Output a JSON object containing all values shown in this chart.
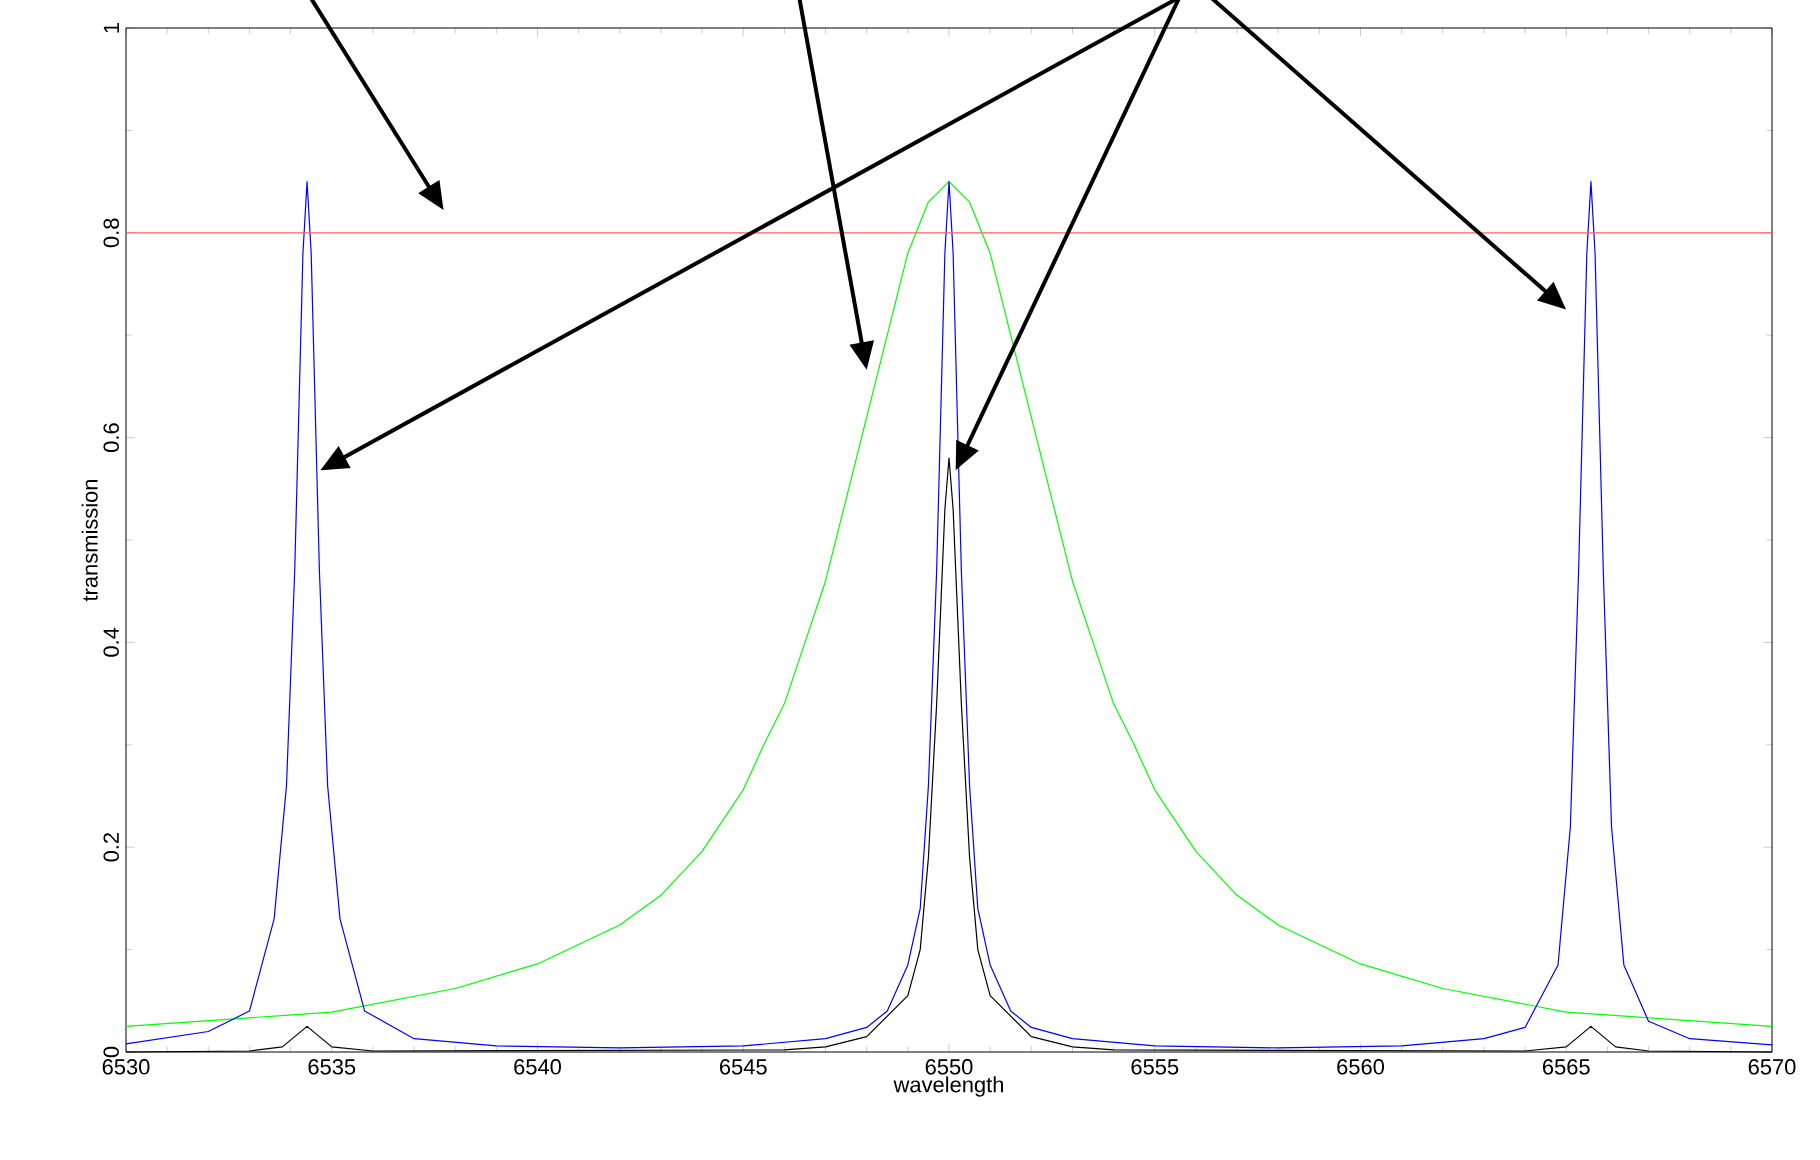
{
  "chart_data": {
    "type": "line",
    "xlabel": "wavelength",
    "ylabel": "transmission",
    "xlim": [
      6530,
      6570
    ],
    "ylim": [
      0,
      1
    ],
    "xticks": [
      6530,
      6535,
      6540,
      6545,
      6550,
      6555,
      6560,
      6565,
      6570
    ],
    "yticks": [
      0,
      0.2,
      0.4,
      0.6,
      0.8,
      1
    ],
    "marker": "none",
    "line_style": "solid",
    "ref_lines": [
      {
        "axis": "y",
        "value": 0.8,
        "color": "#ff6060"
      }
    ],
    "series": [
      {
        "color": "#00ff00",
        "x": [
          6530,
          6535,
          6538,
          6540,
          6542,
          6543,
          6544,
          6545,
          6545.5,
          6546,
          6546.5,
          6547,
          6547.5,
          6548,
          6548.5,
          6549,
          6549.5,
          6550,
          6550.5,
          6551,
          6551.5,
          6552,
          6552.5,
          6553,
          6553.5,
          6554,
          6554.5,
          6555,
          6556,
          6557,
          6558,
          6560,
          6562,
          6565,
          6570
        ],
        "values": [
          0.025,
          0.039,
          0.062,
          0.086,
          0.124,
          0.153,
          0.196,
          0.256,
          0.3,
          0.34,
          0.4,
          0.46,
          0.54,
          0.62,
          0.7,
          0.78,
          0.83,
          0.85,
          0.83,
          0.78,
          0.7,
          0.62,
          0.54,
          0.46,
          0.4,
          0.34,
          0.3,
          0.256,
          0.196,
          0.153,
          0.124,
          0.086,
          0.062,
          0.039,
          0.025
        ]
      },
      {
        "color": "#0000ff",
        "x": [
          6530,
          6532,
          6533,
          6533.6,
          6533.9,
          6534.1,
          6534.3,
          6534.4,
          6534.5,
          6534.7,
          6534.9,
          6535.2,
          6535.8,
          6537,
          6539,
          6542,
          6545,
          6547,
          6548,
          6548.5,
          6549,
          6549.3,
          6549.5,
          6549.7,
          6549.9,
          6550,
          6550.1,
          6550.3,
          6550.5,
          6550.7,
          6551,
          6551.5,
          6552,
          6553,
          6555,
          6558,
          6561,
          6563,
          6564,
          6564.8,
          6565.1,
          6565.3,
          6565.5,
          6565.6,
          6565.7,
          6565.9,
          6566.1,
          6566.4,
          6567,
          6568,
          6570
        ],
        "values": [
          0.008,
          0.02,
          0.04,
          0.13,
          0.26,
          0.47,
          0.78,
          0.85,
          0.78,
          0.47,
          0.26,
          0.13,
          0.04,
          0.013,
          0.006,
          0.004,
          0.006,
          0.013,
          0.024,
          0.04,
          0.085,
          0.14,
          0.26,
          0.47,
          0.78,
          0.85,
          0.78,
          0.47,
          0.26,
          0.14,
          0.085,
          0.04,
          0.024,
          0.013,
          0.006,
          0.004,
          0.006,
          0.013,
          0.024,
          0.085,
          0.22,
          0.47,
          0.78,
          0.85,
          0.78,
          0.47,
          0.22,
          0.085,
          0.03,
          0.013,
          0.007
        ]
      },
      {
        "color": "#000000",
        "x": [
          6530,
          6533,
          6533.8,
          6534.1,
          6534.4,
          6534.7,
          6535,
          6536,
          6546,
          6547,
          6548,
          6549,
          6549.3,
          6549.5,
          6549.7,
          6549.9,
          6550,
          6550.1,
          6550.3,
          6550.5,
          6550.7,
          6551,
          6552,
          6553,
          6554,
          6564,
          6565,
          6565.3,
          6565.6,
          6565.9,
          6566.2,
          6567,
          6570
        ],
        "values": [
          0,
          0.001,
          0.005,
          0.015,
          0.025,
          0.015,
          0.005,
          0.001,
          0.002,
          0.005,
          0.015,
          0.055,
          0.1,
          0.19,
          0.34,
          0.53,
          0.58,
          0.53,
          0.34,
          0.19,
          0.1,
          0.055,
          0.015,
          0.005,
          0.002,
          0.001,
          0.005,
          0.015,
          0.025,
          0.015,
          0.005,
          0.001,
          0
        ]
      }
    ]
  }
}
